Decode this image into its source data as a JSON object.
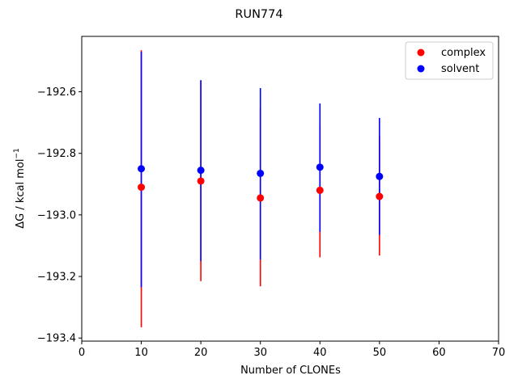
{
  "chart_data": {
    "type": "scatter",
    "title": "RUN774",
    "xlabel": "Number of CLONEs",
    "ylabel_main": "ΔG / kcal mol",
    "ylabel_sup": "−1",
    "xlim": [
      0,
      70
    ],
    "ylim": [
      -193.41,
      -192.42
    ],
    "xticks": [
      0,
      10,
      20,
      30,
      40,
      50,
      60,
      70
    ],
    "xtick_labels": [
      "0",
      "10",
      "20",
      "30",
      "40",
      "50",
      "60",
      "70"
    ],
    "yticks": [
      -193.4,
      -193.2,
      -193.0,
      -192.8,
      -192.6
    ],
    "ytick_labels": [
      "−193.4",
      "−193.2",
      "−193.0",
      "−192.8",
      "−192.6"
    ],
    "grid": false,
    "legend_position": "top-right",
    "series": [
      {
        "name": "complex",
        "color": "#ff0000",
        "x": [
          10,
          20,
          30,
          40,
          50
        ],
        "y": [
          -192.91,
          -192.89,
          -192.945,
          -192.92,
          -192.94
        ],
        "err_low": [
          -193.365,
          -193.215,
          -193.232,
          -193.138,
          -193.132
        ],
        "err_high": [
          -192.465,
          -192.565,
          -192.655,
          -192.705,
          -192.745
        ]
      },
      {
        "name": "solvent",
        "color": "#0000ff",
        "x": [
          10,
          20,
          30,
          40,
          50
        ],
        "y": [
          -192.85,
          -192.855,
          -192.865,
          -192.845,
          -192.875
        ],
        "err_low": [
          -193.235,
          -193.15,
          -193.145,
          -193.055,
          -193.065
        ],
        "err_high": [
          -192.47,
          -192.562,
          -192.588,
          -192.638,
          -192.685
        ]
      }
    ]
  }
}
